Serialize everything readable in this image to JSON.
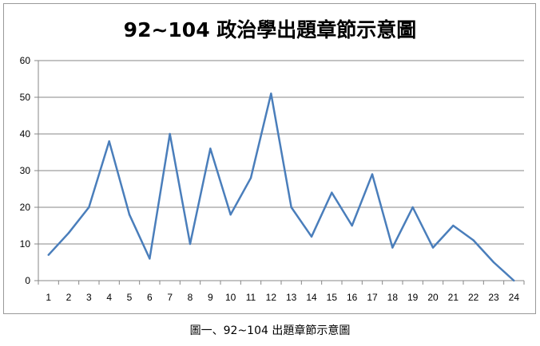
{
  "caption": "圖一、92~104 出題章節示意圖",
  "chart_data": {
    "type": "line",
    "title": "92~104 政治學出題章節示意圖",
    "xlabel": "",
    "ylabel": "",
    "x": [
      1,
      2,
      3,
      4,
      5,
      6,
      7,
      8,
      9,
      10,
      11,
      12,
      13,
      14,
      15,
      16,
      17,
      18,
      19,
      20,
      21,
      22,
      23,
      24
    ],
    "series": [
      {
        "name": "",
        "values": [
          7,
          13,
          20,
          38,
          18,
          6,
          40,
          10,
          36,
          18,
          28,
          51,
          20,
          12,
          24,
          15,
          29,
          9,
          20,
          9,
          15,
          11,
          5,
          0
        ]
      }
    ],
    "ylim": [
      0,
      60
    ],
    "yticks": [
      0,
      10,
      20,
      30,
      40,
      50,
      60
    ],
    "grid": true,
    "legend": "none",
    "line_color": "#4a7ebb",
    "grid_color": "#878787"
  }
}
